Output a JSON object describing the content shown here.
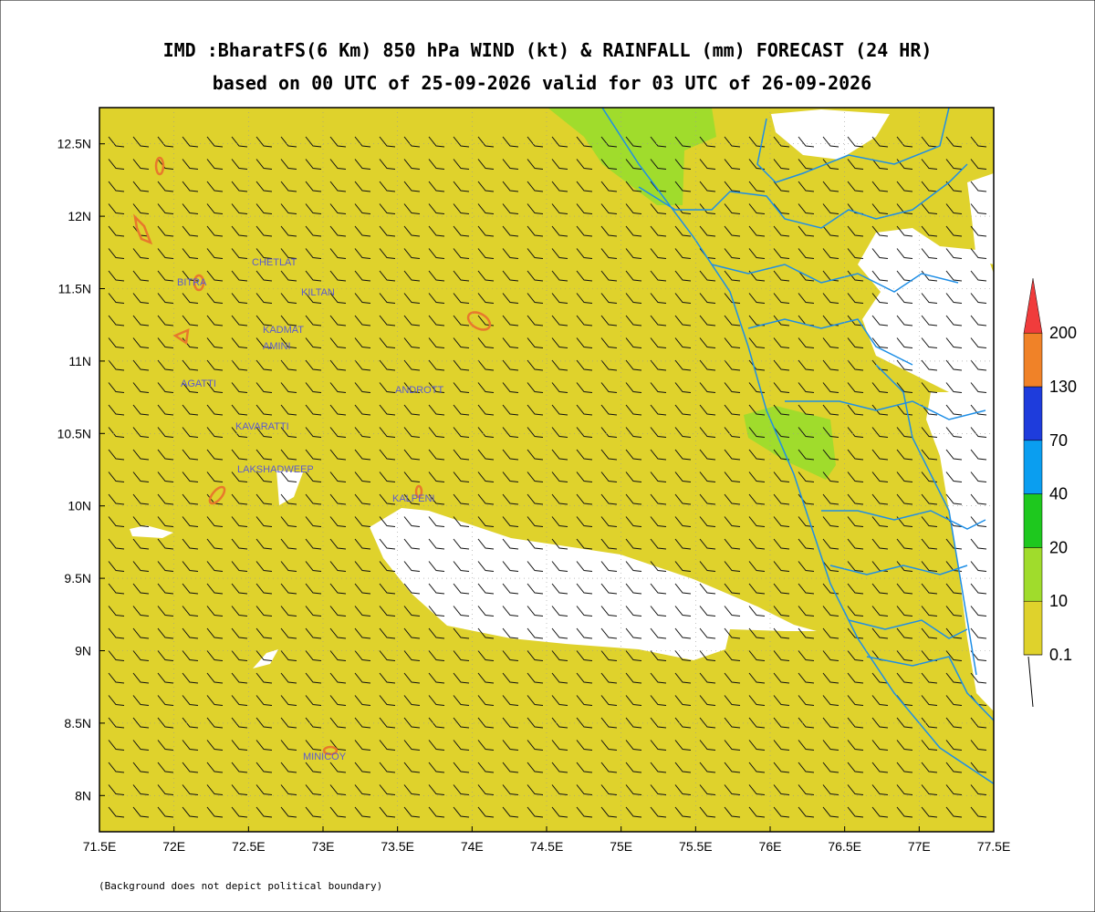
{
  "title": "IMD :BharatFS(6 Km) 850 hPa WIND (kt) & RAINFALL (mm) FORECAST (24 HR)",
  "subtitle": "based on 00 UTC of 25-09-2026 valid for 03 UTC of 26-09-2026",
  "map": {
    "xlim": [
      71.5,
      77.5
    ],
    "ylim": [
      7.75,
      12.75
    ],
    "xticks": [
      {
        "value": 71.5,
        "label": "71.5E"
      },
      {
        "value": 72,
        "label": "72E"
      },
      {
        "value": 72.5,
        "label": "72.5E"
      },
      {
        "value": 73,
        "label": "73E"
      },
      {
        "value": 73.5,
        "label": "73.5E"
      },
      {
        "value": 74,
        "label": "74E"
      },
      {
        "value": 74.5,
        "label": "74.5E"
      },
      {
        "value": 75,
        "label": "75E"
      },
      {
        "value": 75.5,
        "label": "75.5E"
      },
      {
        "value": 76,
        "label": "76E"
      },
      {
        "value": 76.5,
        "label": "76.5E"
      },
      {
        "value": 77,
        "label": "77E"
      },
      {
        "value": 77.5,
        "label": "77.5E"
      }
    ],
    "yticks": [
      {
        "value": 8,
        "label": "8N"
      },
      {
        "value": 8.5,
        "label": "8.5N"
      },
      {
        "value": 9,
        "label": "9N"
      },
      {
        "value": 9.5,
        "label": "9.5N"
      },
      {
        "value": 10,
        "label": "10N"
      },
      {
        "value": 10.5,
        "label": "10.5N"
      },
      {
        "value": 11,
        "label": "11N"
      },
      {
        "value": 11.5,
        "label": "11.5N"
      },
      {
        "value": 12,
        "label": "12N"
      },
      {
        "value": 12.5,
        "label": "12.5N"
      }
    ],
    "places": [
      "BITRA",
      "CHETLAT",
      "KILTAN",
      "KADMAT",
      "AMINI",
      "AGATTI",
      "ANDROTT",
      "KAVARATTI",
      "LAKSHADWEEP",
      "KALPENI",
      "MINICOY"
    ]
  },
  "colorbar": {
    "levels": [
      0.1,
      10,
      20,
      40,
      70,
      130,
      200
    ],
    "colors": [
      "#dfd22c",
      "#a0dc2c",
      "#1ec81e",
      "#0a9ef0",
      "#1e3cdc",
      "#f08228",
      "#f03c3c"
    ]
  },
  "footnote": "(Background does not depict political boundary)"
}
